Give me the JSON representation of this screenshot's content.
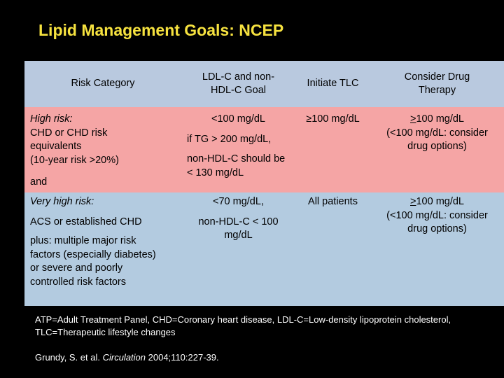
{
  "title": "Lipid Management Goals: NCEP",
  "table": {
    "headers": [
      "Risk Category",
      "LDL-C and non-HDL-C Goal",
      "Initiate TLC",
      "Consider Drug Therapy"
    ],
    "high_risk": {
      "label": "High risk:",
      "desc_1": "CHD or CHD risk equivalents",
      "desc_2": "(10-year risk >20%)",
      "and": "and",
      "goal_1": "<100 mg/dL",
      "goal_2": "if TG > 200 mg/dL,",
      "goal_3": "non-HDL-C should be < 130 mg/dL",
      "tlc": "≥100 mg/dL",
      "drug_sym": ">",
      "drug_1": "100 mg/dL",
      "drug_2": "(<100 mg/dL: consider drug options)"
    },
    "very_high_risk": {
      "label": "Very high risk:",
      "desc_1": "ACS or established CHD",
      "desc_2": "plus: multiple major risk factors (especially diabetes) or severe and poorly controlled risk factors",
      "goal_1": "<70 mg/dL,",
      "goal_2": "non-HDL-C < 100 mg/dL",
      "tlc": "All patients",
      "drug_sym": ">",
      "drug_1": "100 mg/dL",
      "drug_2": "(<100 mg/dL: consider drug options)"
    }
  },
  "footnote": "ATP=Adult Treatment Panel, CHD=Coronary heart disease, LDL-C=Low-density lipoprotein cholesterol, TLC=Therapeutic lifestyle changes",
  "citation": {
    "authors": "Grundy, S. et al.",
    "journal": "Circulation",
    "ref": "2004;110:227-39."
  }
}
